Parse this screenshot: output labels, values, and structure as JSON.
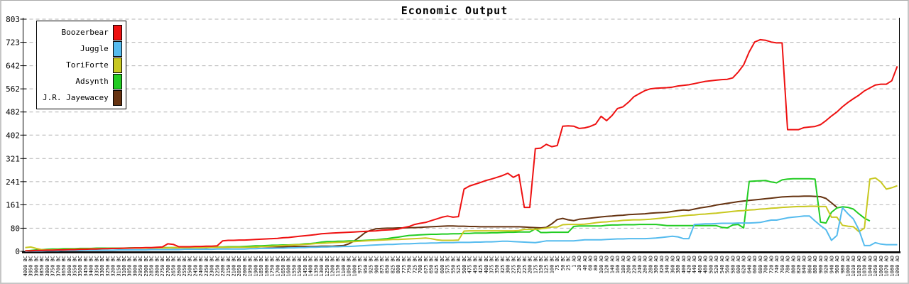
{
  "title": "Economic Output",
  "legend": {
    "position": "top-left",
    "items": [
      {
        "label": "Boozerbear",
        "color": "#ee1111"
      },
      {
        "label": "Juggle",
        "color": "#55bbee"
      },
      {
        "label": "ToriForte",
        "color": "#c8c820"
      },
      {
        "label": "Adsynth",
        "color": "#22cc22"
      },
      {
        "label": "J.R. Jayewacey",
        "color": "#663311"
      }
    ]
  },
  "chart_data": {
    "type": "line",
    "title": "Economic Output",
    "xlabel": "",
    "ylabel": "",
    "ylim": [
      0,
      803
    ],
    "yticks": [
      0,
      80,
      161,
      241,
      321,
      402,
      482,
      562,
      642,
      723,
      803
    ],
    "grid": "horizontal-dashed",
    "legend_position": "top-left",
    "x": [
      "4000 BC",
      "3950 BC",
      "3900 BC",
      "3850 BC",
      "3800 BC",
      "3750 BC",
      "3700 BC",
      "3650 BC",
      "3600 BC",
      "3550 BC",
      "3500 BC",
      "3450 BC",
      "3400 BC",
      "3350 BC",
      "3300 BC",
      "3250 BC",
      "3200 BC",
      "3150 BC",
      "3100 BC",
      "3050 BC",
      "3000 BC",
      "2950 BC",
      "2900 BC",
      "2850 BC",
      "2800 BC",
      "2750 BC",
      "2700 BC",
      "2650 BC",
      "2600 BC",
      "2550 BC",
      "2500 BC",
      "2450 BC",
      "2400 BC",
      "2350 BC",
      "2300 BC",
      "2250 BC",
      "2200 BC",
      "2150 BC",
      "2100 BC",
      "2050 BC",
      "2000 BC",
      "1950 BC",
      "1900 BC",
      "1850 BC",
      "1800 BC",
      "1750 BC",
      "1700 BC",
      "1650 BC",
      "1600 BC",
      "1550 BC",
      "1500 BC",
      "1450 BC",
      "1400 BC",
      "1350 BC",
      "1300 BC",
      "1250 BC",
      "1200 BC",
      "1150 BC",
      "1100 BC",
      "1050 BC",
      "1000 BC",
      "975 BC",
      "950 BC",
      "925 BC",
      "900 BC",
      "875 BC",
      "850 BC",
      "825 BC",
      "800 BC",
      "775 BC",
      "750 BC",
      "725 BC",
      "700 BC",
      "675 BC",
      "650 BC",
      "625 BC",
      "600 BC",
      "575 BC",
      "550 BC",
      "525 BC",
      "500 BC",
      "475 BC",
      "450 BC",
      "425 BC",
      "400 BC",
      "375 BC",
      "350 BC",
      "325 BC",
      "300 BC",
      "275 BC",
      "250 BC",
      "225 BC",
      "200 BC",
      "175 BC",
      "150 BC",
      "125 BC",
      "100 BC",
      "75 BC",
      "50 BC",
      "25 BC",
      "1 AD",
      "20 AD",
      "40 AD",
      "60 AD",
      "80 AD",
      "100 AD",
      "120 AD",
      "140 AD",
      "160 AD",
      "180 AD",
      "200 AD",
      "220 AD",
      "240 AD",
      "260 AD",
      "280 AD",
      "300 AD",
      "320 AD",
      "340 AD",
      "360 AD",
      "380 AD",
      "400 AD",
      "420 AD",
      "440 AD",
      "460 AD",
      "480 AD",
      "500 AD",
      "520 AD",
      "540 AD",
      "560 AD",
      "580 AD",
      "600 AD",
      "620 AD",
      "640 AD",
      "660 AD",
      "680 AD",
      "700 AD",
      "720 AD",
      "740 AD",
      "760 AD",
      "780 AD",
      "800 AD",
      "820 AD",
      "840 AD",
      "860 AD",
      "880 AD",
      "900 AD",
      "920 AD",
      "940 AD",
      "960 AD",
      "980 AD",
      "1000 AD",
      "1010 AD",
      "1020 AD",
      "1030 AD",
      "1040 AD",
      "1050 AD",
      "1060 AD",
      "1070 AD",
      "1080 AD",
      "1090 AD"
    ],
    "series": [
      {
        "name": "Boozerbear",
        "color": "#ee1111",
        "values": [
          2,
          2,
          3,
          3,
          4,
          4,
          5,
          5,
          6,
          6,
          7,
          7,
          8,
          8,
          9,
          9,
          10,
          10,
          11,
          11,
          12,
          12,
          13,
          13,
          14,
          15,
          26,
          24,
          16,
          16,
          16,
          17,
          17,
          18,
          18,
          19,
          36,
          38,
          38,
          39,
          39,
          40,
          41,
          42,
          43,
          44,
          45,
          47,
          48,
          50,
          52,
          54,
          56,
          58,
          61,
          62,
          63,
          64,
          65,
          66,
          67,
          68,
          69,
          70,
          71,
          73,
          74,
          75,
          77,
          82,
          86,
          93,
          97,
          100,
          106,
          112,
          118,
          122,
          118,
          120,
          215,
          226,
          232,
          238,
          245,
          250,
          256,
          262,
          270,
          256,
          266,
          152,
          152,
          355,
          357,
          370,
          362,
          366,
          433,
          434,
          433,
          425,
          427,
          432,
          440,
          467,
          452,
          470,
          494,
          500,
          516,
          535,
          546,
          556,
          562,
          564,
          565,
          566,
          568,
          572,
          574,
          576,
          580,
          584,
          588,
          590,
          592,
          594,
          595,
          600,
          620,
          645,
          690,
          724,
          732,
          730,
          724,
          721,
          721,
          421,
          421,
          421,
          428,
          430,
          432,
          438,
          452,
          468,
          482,
          500,
          515,
          528,
          540,
          555,
          565,
          575,
          578,
          578,
          590,
          640
        ]
      },
      {
        "name": "Juggle",
        "color": "#55bbee",
        "values": [
          0,
          1,
          1,
          1,
          2,
          2,
          2,
          3,
          3,
          3,
          3,
          4,
          4,
          4,
          4,
          4,
          4,
          5,
          5,
          5,
          5,
          5,
          5,
          6,
          6,
          6,
          6,
          6,
          6,
          7,
          7,
          7,
          7,
          7,
          7,
          8,
          8,
          8,
          8,
          8,
          8,
          9,
          9,
          10,
          10,
          10,
          11,
          11,
          12,
          12,
          13,
          13,
          14,
          14,
          15,
          15,
          16,
          16,
          17,
          17,
          18,
          19,
          20,
          21,
          22,
          23,
          24,
          24,
          25,
          26,
          26,
          27,
          28,
          28,
          29,
          29,
          30,
          30,
          30,
          31,
          31,
          31,
          32,
          32,
          33,
          33,
          34,
          35,
          35,
          34,
          33,
          32,
          31,
          30,
          33,
          36,
          36,
          36,
          36,
          36,
          36,
          38,
          40,
          40,
          40,
          40,
          41,
          42,
          43,
          43,
          44,
          44,
          44,
          44,
          45,
          46,
          48,
          50,
          52,
          50,
          44,
          44,
          93,
          94,
          95,
          95,
          96,
          97,
          97,
          97,
          98,
          98,
          98,
          99,
          100,
          104,
          108,
          108,
          112,
          116,
          118,
          120,
          122,
          122,
          105,
          89,
          75,
          38,
          55,
          151,
          130,
          112,
          75,
          20,
          20,
          30,
          25,
          23,
          23,
          23
        ]
      },
      {
        "name": "ToriForte",
        "color": "#c8c820",
        "values": [
          13,
          15,
          10,
          6,
          5,
          5,
          6,
          6,
          7,
          7,
          8,
          8,
          9,
          9,
          9,
          10,
          10,
          10,
          10,
          11,
          11,
          11,
          11,
          12,
          12,
          12,
          12,
          13,
          13,
          13,
          13,
          13,
          13,
          14,
          14,
          14,
          14,
          14,
          14,
          14,
          14,
          14,
          15,
          16,
          17,
          18,
          19,
          20,
          21,
          22,
          23,
          24,
          25,
          27,
          28,
          29,
          30,
          31,
          32,
          33,
          34,
          35,
          36,
          37,
          38,
          39,
          40,
          41,
          41,
          42,
          43,
          44,
          45,
          46,
          44,
          40,
          38,
          38,
          38,
          39,
          70,
          71,
          71,
          71,
          71,
          71,
          71,
          71,
          71,
          71,
          72,
          76,
          76,
          76,
          78,
          80,
          84,
          84,
          92,
          93,
          93,
          93,
          94,
          96,
          99,
          101,
          102,
          104,
          105,
          107,
          108,
          109,
          109,
          110,
          111,
          113,
          115,
          117,
          119,
          121,
          123,
          125,
          126,
          128,
          129,
          131,
          132,
          134,
          136,
          138,
          140,
          141,
          143,
          144,
          146,
          147,
          149,
          150,
          152,
          153,
          154,
          155,
          155,
          156,
          156,
          155,
          155,
          118,
          118,
          90,
          87,
          85,
          68,
          80,
          250,
          254,
          240,
          215,
          220,
          227
        ]
      },
      {
        "name": "Adsynth",
        "color": "#22cc22",
        "values": [
          1,
          3,
          5,
          6,
          7,
          8,
          8,
          9,
          9,
          9,
          10,
          10,
          10,
          11,
          11,
          11,
          11,
          11,
          11,
          12,
          12,
          12,
          12,
          12,
          12,
          13,
          13,
          13,
          13,
          13,
          13,
          14,
          14,
          14,
          15,
          15,
          15,
          16,
          16,
          16,
          17,
          18,
          19,
          19,
          20,
          21,
          21,
          22,
          22,
          23,
          24,
          26,
          27,
          29,
          32,
          34,
          34,
          35,
          35,
          36,
          36,
          37,
          38,
          39,
          40,
          42,
          44,
          47,
          49,
          52,
          55,
          56,
          57,
          58,
          59,
          59,
          60,
          60,
          61,
          61,
          62,
          62,
          63,
          63,
          63,
          64,
          64,
          65,
          66,
          66,
          67,
          67,
          67,
          78,
          65,
          65,
          66,
          66,
          66,
          66,
          86,
          88,
          88,
          88,
          88,
          88,
          90,
          91,
          91,
          92,
          92,
          92,
          93,
          93,
          93,
          93,
          91,
          89,
          89,
          89,
          89,
          89,
          89,
          89,
          89,
          89,
          89,
          83,
          81,
          91,
          93,
          81,
          242,
          243,
          244,
          245,
          240,
          237,
          247,
          250,
          251,
          251,
          251,
          251,
          250,
          101,
          98,
          135,
          150,
          154,
          152,
          146,
          130,
          115,
          105,
          null,
          null,
          null,
          null,
          null
        ]
      },
      {
        "name": "J.R. Jayewacey",
        "color": "#663311",
        "values": [
          1,
          2,
          3,
          4,
          5,
          6,
          6,
          7,
          7,
          8,
          8,
          9,
          9,
          9,
          10,
          10,
          10,
          10,
          11,
          11,
          11,
          11,
          11,
          12,
          12,
          12,
          12,
          12,
          12,
          13,
          13,
          13,
          13,
          13,
          14,
          14,
          14,
          14,
          15,
          15,
          15,
          15,
          15,
          16,
          16,
          16,
          16,
          16,
          16,
          17,
          17,
          17,
          17,
          17,
          18,
          18,
          18,
          19,
          20,
          26,
          36,
          50,
          65,
          73,
          78,
          79,
          80,
          80,
          81,
          81,
          82,
          82,
          83,
          84,
          85,
          86,
          87,
          88,
          88,
          87,
          87,
          86,
          86,
          85,
          85,
          85,
          85,
          85,
          85,
          85,
          85,
          84,
          83,
          82,
          81,
          83,
          95,
          110,
          114,
          109,
          106,
          111,
          113,
          115,
          117,
          119,
          121,
          122,
          124,
          125,
          127,
          128,
          129,
          130,
          132,
          133,
          134,
          135,
          138,
          141,
          143,
          142,
          146,
          150,
          153,
          156,
          160,
          163,
          166,
          169,
          172,
          174,
          176,
          178,
          180,
          182,
          184,
          186,
          188,
          189,
          190,
          190,
          191,
          191,
          190,
          189,
          183,
          168,
          152,
          null,
          null,
          null,
          null,
          null,
          null,
          null,
          null,
          null,
          null,
          null
        ]
      }
    ]
  }
}
